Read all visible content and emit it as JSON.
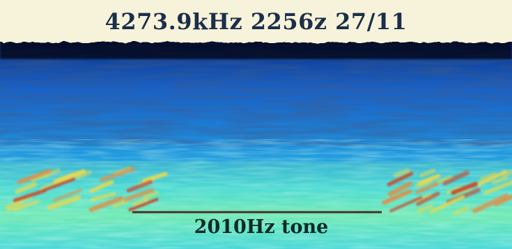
{
  "header": {
    "text": "4273.9kHz 2256z 27/11",
    "bg_color": "#f7f3da",
    "text_color": "#1b2f4a"
  },
  "waterfall": {
    "colormap": [
      "#000000",
      "#08101e",
      "#0d2f80",
      "#1660c8",
      "#24a2e0",
      "#44e0e0",
      "#8cf0a0",
      "#e8d850",
      "#e09048",
      "#c84a30"
    ]
  },
  "annotation": {
    "label": "2010Hz tone",
    "marker_color": "#4a2f28"
  }
}
